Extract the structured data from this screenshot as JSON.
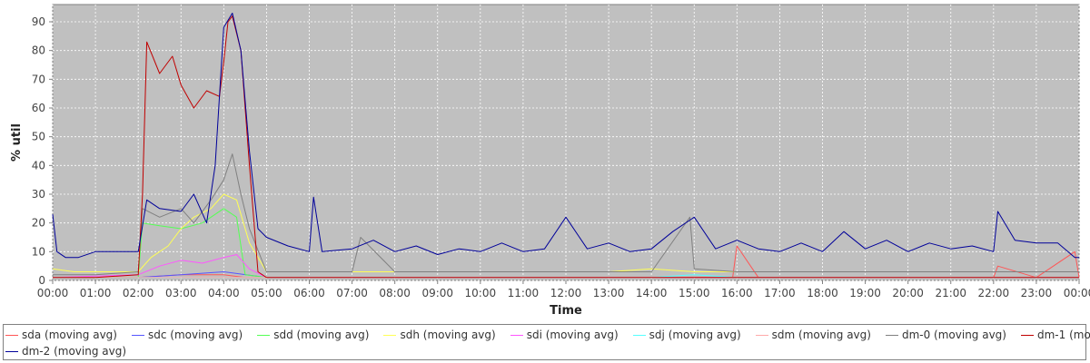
{
  "chart_data": {
    "type": "line",
    "xlabel": "Time",
    "ylabel": "% util",
    "xlim": [
      0,
      24
    ],
    "ylim": [
      0,
      96
    ],
    "x_ticks": [
      "00:00",
      "01:00",
      "02:00",
      "03:00",
      "04:00",
      "05:00",
      "06:00",
      "07:00",
      "08:00",
      "09:00",
      "10:00",
      "11:00",
      "12:00",
      "13:00",
      "14:00",
      "15:00",
      "16:00",
      "17:00",
      "18:00",
      "19:00",
      "20:00",
      "21:00",
      "22:00",
      "23:00",
      "00:00"
    ],
    "y_ticks": [
      0,
      10,
      20,
      30,
      40,
      50,
      60,
      70,
      80,
      90
    ],
    "grid": true,
    "legend_position": "bottom",
    "series": [
      {
        "name": "sda (moving avg)",
        "color": "#ff5555",
        "x": [
          0,
          1,
          2,
          3,
          4,
          4.5,
          5,
          6,
          7,
          8,
          9,
          10,
          11,
          12,
          13,
          14,
          15,
          15.9,
          16,
          16.5,
          17,
          18,
          19,
          20,
          21,
          22,
          22.1,
          23,
          23.9,
          24
        ],
        "y": [
          1,
          1,
          1,
          2,
          2,
          1,
          1,
          1,
          1,
          1,
          1,
          1,
          1,
          1,
          1,
          1,
          1,
          1,
          12,
          1,
          1,
          1,
          1,
          1,
          1,
          1,
          5,
          1,
          10,
          1
        ]
      },
      {
        "name": "sdc (moving avg)",
        "color": "#5555ff",
        "x": [
          0,
          1,
          2,
          3,
          4,
          5,
          6,
          7,
          8,
          9,
          10,
          11,
          12,
          13,
          14,
          15,
          16,
          17,
          18,
          19,
          20,
          21,
          22,
          23,
          24
        ],
        "y": [
          1,
          1,
          1,
          2,
          3,
          1,
          1,
          1,
          1,
          1,
          1,
          1,
          1,
          1,
          1,
          1,
          1,
          1,
          1,
          1,
          1,
          1,
          1,
          1,
          1
        ]
      },
      {
        "name": "sdd (moving avg)",
        "color": "#55ff55",
        "x": [
          0,
          2,
          2.1,
          2.5,
          3,
          3.5,
          4,
          4.3,
          4.5,
          5,
          24
        ],
        "y": [
          1,
          1,
          20,
          19,
          18,
          20,
          25,
          22,
          2,
          1,
          1
        ]
      },
      {
        "name": "sdh (moving avg)",
        "color": "#ffff55",
        "x": [
          0,
          0.5,
          1,
          1.5,
          2,
          2.3,
          2.7,
          3,
          3.3,
          3.7,
          4,
          4.3,
          4.6,
          5,
          6,
          7,
          8,
          9,
          10,
          11,
          12,
          13,
          14,
          15,
          16,
          17,
          18,
          19,
          20,
          21,
          22,
          23,
          24
        ],
        "y": [
          4,
          3,
          3,
          3,
          3,
          8,
          12,
          18,
          22,
          25,
          30,
          28,
          13,
          3,
          3,
          3,
          3,
          3,
          3,
          3,
          3,
          3,
          4,
          3,
          3,
          3,
          3,
          3,
          3,
          3,
          3,
          3,
          3
        ]
      },
      {
        "name": "sdi (moving avg)",
        "color": "#ff55ff",
        "x": [
          0,
          2,
          2.5,
          3,
          3.5,
          4,
          4.3,
          4.6,
          5,
          6,
          7,
          8,
          9,
          10,
          11,
          12,
          13,
          14,
          15,
          16,
          17,
          18,
          19,
          20,
          21,
          22,
          23,
          24
        ],
        "y": [
          1,
          2,
          5,
          7,
          6,
          8,
          9,
          4,
          1,
          1,
          1,
          1,
          1,
          1,
          1,
          1,
          1,
          1,
          1,
          1,
          1,
          1,
          1,
          1,
          1,
          1,
          1,
          1
        ]
      },
      {
        "name": "sdj (moving avg)",
        "color": "#55ffff",
        "x": [
          0,
          4,
          5,
          6,
          7,
          8,
          9,
          10,
          11,
          12,
          13,
          14,
          15,
          16,
          17,
          18,
          19,
          20,
          21,
          22,
          23,
          24
        ],
        "y": [
          1,
          1,
          1,
          1,
          1,
          1,
          1,
          1,
          1,
          1,
          1,
          1,
          2,
          1,
          1,
          1,
          1,
          1,
          1,
          1,
          1,
          1
        ]
      },
      {
        "name": "sdm (moving avg)",
        "color": "#ffaaaa",
        "x": [
          0,
          6,
          12,
          18,
          24
        ],
        "y": [
          1,
          1,
          1,
          1,
          1
        ]
      },
      {
        "name": "dm-0 (moving avg)",
        "color": "#808080",
        "x": [
          0,
          1,
          2,
          2.1,
          2.5,
          3,
          3.3,
          3.7,
          4,
          4.2,
          4.4,
          4.6,
          5,
          6,
          7,
          7.2,
          8,
          9,
          10,
          11,
          12,
          13,
          14,
          14.9,
          15,
          16,
          17,
          18,
          19,
          20,
          21,
          22,
          23,
          24
        ],
        "y": [
          2,
          2,
          3,
          25,
          22,
          25,
          20,
          28,
          35,
          44,
          30,
          18,
          3,
          3,
          3,
          15,
          3,
          3,
          3,
          3,
          3,
          3,
          3,
          22,
          4,
          3,
          3,
          3,
          3,
          3,
          3,
          3,
          3,
          3
        ]
      },
      {
        "name": "dm-1 (moving avg)",
        "color": "#c00000",
        "x": [
          0,
          1,
          2,
          2.1,
          2.2,
          2.5,
          2.8,
          3,
          3.3,
          3.6,
          3.9,
          4,
          4.1,
          4.2,
          4.4,
          4.6,
          4.8,
          5,
          6,
          12,
          18,
          24
        ],
        "y": [
          1,
          1,
          2,
          30,
          83,
          72,
          78,
          68,
          60,
          66,
          64,
          76,
          90,
          92,
          80,
          40,
          3,
          1,
          1,
          1,
          1,
          1
        ]
      },
      {
        "name": "dm-2 (moving avg)",
        "color": "#000099",
        "x": [
          0,
          0.1,
          0.3,
          0.6,
          1,
          1.5,
          2,
          2.2,
          2.5,
          3,
          3.3,
          3.6,
          3.8,
          4,
          4.2,
          4.4,
          4.6,
          4.8,
          5,
          5.5,
          6,
          6.1,
          6.3,
          7,
          7.5,
          8,
          8.5,
          9,
          9.5,
          10,
          10.5,
          11,
          11.5,
          12,
          12.5,
          13,
          13.5,
          14,
          14.5,
          15,
          15.5,
          16,
          16.5,
          17,
          17.5,
          18,
          18.5,
          19,
          19.5,
          20,
          20.5,
          21,
          21.5,
          22,
          22.1,
          22.5,
          23,
          23.5,
          23.9,
          24
        ],
        "y": [
          23,
          10,
          8,
          8,
          10,
          10,
          10,
          28,
          25,
          24,
          30,
          20,
          40,
          88,
          93,
          80,
          45,
          18,
          15,
          12,
          10,
          29,
          10,
          11,
          14,
          10,
          12,
          9,
          11,
          10,
          13,
          10,
          11,
          22,
          11,
          13,
          10,
          11,
          17,
          22,
          11,
          14,
          11,
          10,
          13,
          10,
          17,
          11,
          14,
          10,
          13,
          11,
          12,
          10,
          24,
          14,
          13,
          13,
          8,
          8
        ]
      }
    ]
  }
}
